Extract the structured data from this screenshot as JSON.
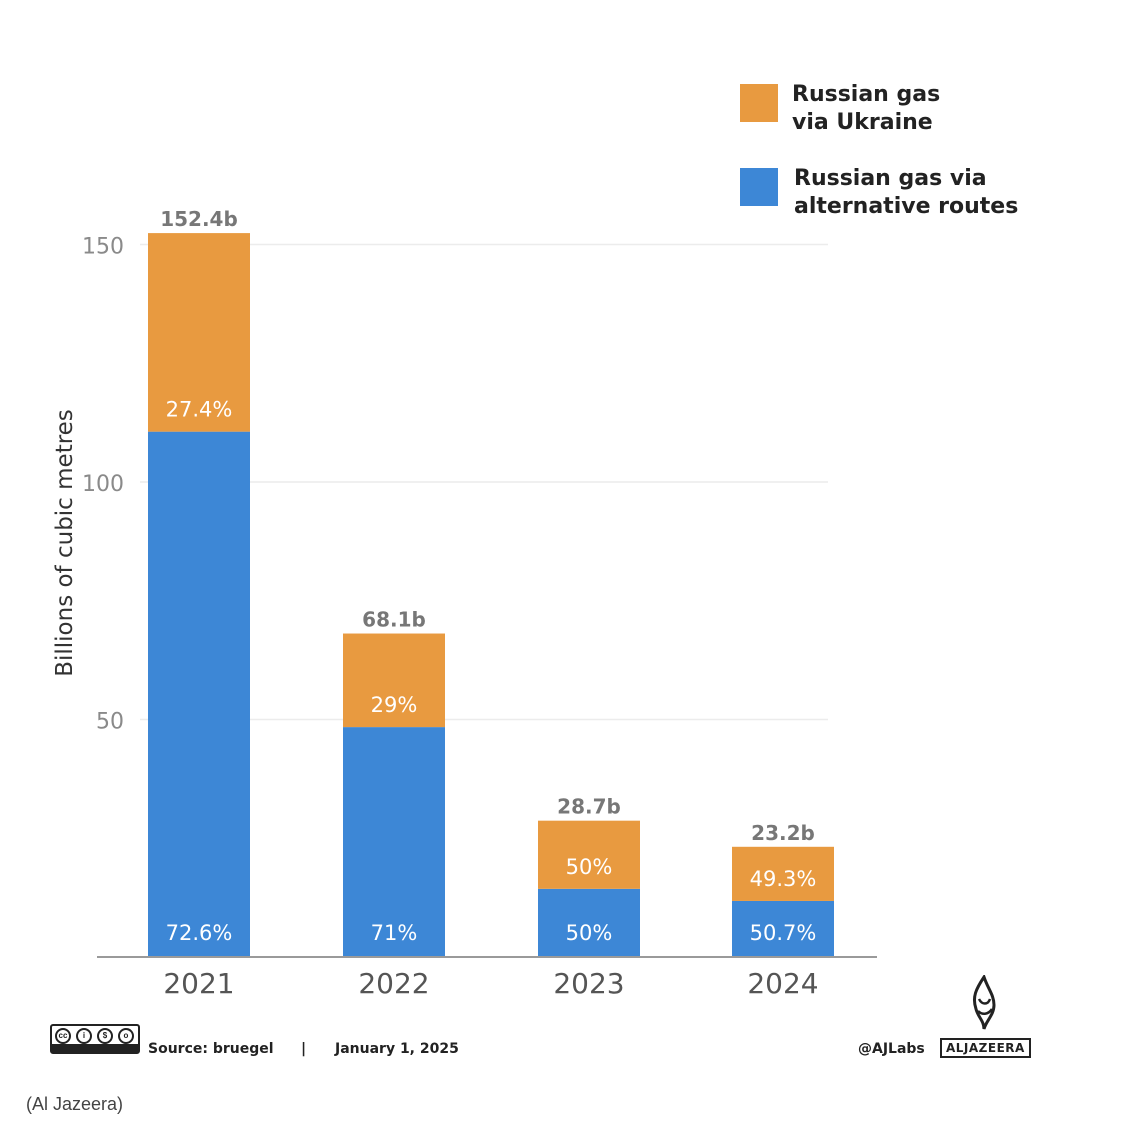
{
  "chart_data": {
    "type": "bar",
    "stacked": true,
    "categories": [
      "2021",
      "2022",
      "2023",
      "2024"
    ],
    "series": [
      {
        "name": "Russian gas via alternative routes",
        "color": "#3d87d6",
        "values": [
          110.6,
          48.4,
          14.35,
          11.8
        ],
        "labels": [
          "72.6%",
          "71%",
          "50%",
          "50.7%"
        ]
      },
      {
        "name": "Russian gas via Ukraine",
        "color": "#e89a40",
        "values": [
          41.8,
          19.7,
          14.35,
          11.4
        ],
        "labels": [
          "27.4%",
          "29%",
          "50%",
          "49.3%"
        ]
      }
    ],
    "totals": [
      "152.4b",
      "68.1b",
      "28.7b",
      "23.2b"
    ],
    "ylabel": "Billions of cubic metres",
    "yticks": [
      50,
      100,
      150
    ],
    "ylim": [
      0,
      155
    ],
    "grid": true,
    "legend_position": "top-right"
  },
  "legend": [
    {
      "label": "Russian gas\nvia Ukraine",
      "color": "#e89a40"
    },
    {
      "label": "Russian gas via\nalternative routes",
      "color": "#3d87d6"
    }
  ],
  "footer": {
    "source": "Source:  bruegel",
    "separator": "|",
    "date": "January 1, 2025",
    "handle": "@AJLabs",
    "brand": "ALJAZEERA",
    "license_parts": [
      "BY",
      "NC",
      "SA"
    ]
  },
  "caption": "(Al Jazeera)"
}
